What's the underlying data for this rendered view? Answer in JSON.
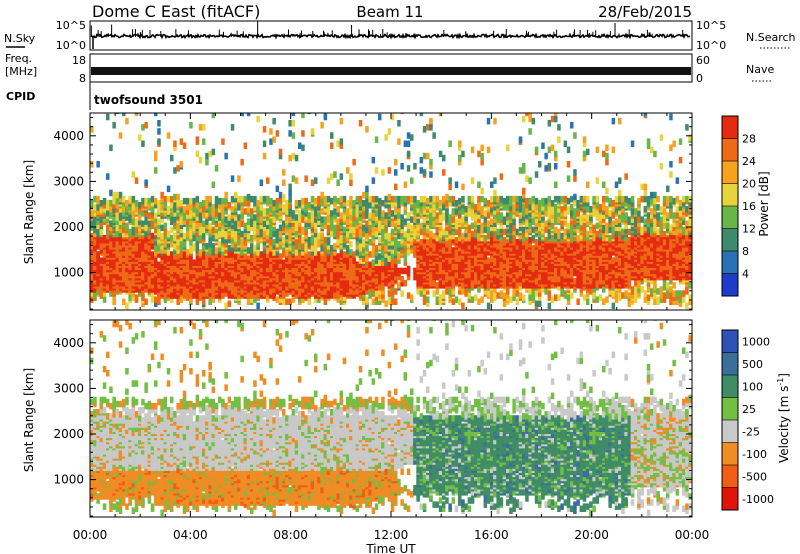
{
  "header": {
    "title": "Dome C East (fitACF)",
    "beam": "Beam 11",
    "date": "28/Feb/2015"
  },
  "status_panels": {
    "nsky": {
      "label": "N.Sky",
      "ticks": [
        "10^5",
        "10^0"
      ]
    },
    "nsearch": {
      "label": "N.Search",
      "ticks": [
        "10^5",
        "10^0"
      ]
    },
    "freq": {
      "label_top": "Freq.",
      "label_bottom": "[MHz]",
      "ticks": [
        "18",
        "8"
      ]
    },
    "nave": {
      "label": "Nave",
      "ticks": [
        "60",
        "0"
      ]
    },
    "cpid": {
      "label": "CPID",
      "value": "twofsound 3501"
    }
  },
  "chart_data": [
    {
      "type": "heatmap",
      "name": "Power",
      "ylabel": "Slant Range [km]",
      "xlabel": "Time UT",
      "xlim": [
        0,
        24
      ],
      "ylim": [
        180,
        4500
      ],
      "x_ticks": [
        "00:00",
        "04:00",
        "08:00",
        "12:00",
        "16:00",
        "20:00",
        "00:00"
      ],
      "y_ticks": [
        1000,
        2000,
        3000,
        4000
      ],
      "colorbar": {
        "label": "Power [dB]",
        "ticks": [
          4,
          8,
          12,
          16,
          20,
          24,
          28
        ],
        "colors": [
          "#1e3cc8",
          "#2a72b6",
          "#3d8a6c",
          "#68b548",
          "#e8d43a",
          "#f6a21e",
          "#ef6a16",
          "#e42a10"
        ]
      },
      "bands": [
        {
          "t": [
            0,
            2.5
          ],
          "r": [
            600,
            1800
          ],
          "level": "high"
        },
        {
          "t": [
            2.5,
            10.5
          ],
          "r": [
            500,
            1400
          ],
          "level": "high"
        },
        {
          "t": [
            12.8,
            21.5
          ],
          "r": [
            650,
            1700
          ],
          "level": "high"
        },
        {
          "t": [
            0,
            24
          ],
          "r": [
            1700,
            2500
          ],
          "level": "medium"
        }
      ]
    },
    {
      "type": "heatmap",
      "name": "Velocity",
      "ylabel": "Slant Range [km]",
      "xlabel": "Time UT",
      "xlim": [
        0,
        24
      ],
      "ylim": [
        180,
        4500
      ],
      "x_ticks": [
        "00:00",
        "04:00",
        "08:00",
        "12:00",
        "16:00",
        "20:00",
        "00:00"
      ],
      "y_ticks": [
        1000,
        2000,
        3000,
        4000
      ],
      "colorbar": {
        "label": "Velocity [m s^-1]",
        "ticks": [
          "1000",
          "500",
          "100",
          "25",
          "-25",
          "-100",
          "-500",
          "-1000"
        ],
        "colors": [
          "#2f52b8",
          "#3b6e9a",
          "#3f8c66",
          "#72bf44",
          "#c9c9c9",
          "#ef8c24",
          "#f35c14",
          "#e0140c"
        ]
      },
      "bands": [
        {
          "t": [
            0,
            12.0
          ],
          "r": [
            450,
            1100
          ],
          "velocity": "-100 to -500"
        },
        {
          "t": [
            0,
            13.0
          ],
          "r": [
            1300,
            2400
          ],
          "velocity": "-25 to 25"
        },
        {
          "t": [
            13.0,
            21.5
          ],
          "r": [
            650,
            2200
          ],
          "velocity": "100 to 500"
        },
        {
          "t": [
            21.5,
            24
          ],
          "r": [
            1200,
            2700
          ],
          "velocity": "-25 to 25"
        }
      ]
    }
  ]
}
